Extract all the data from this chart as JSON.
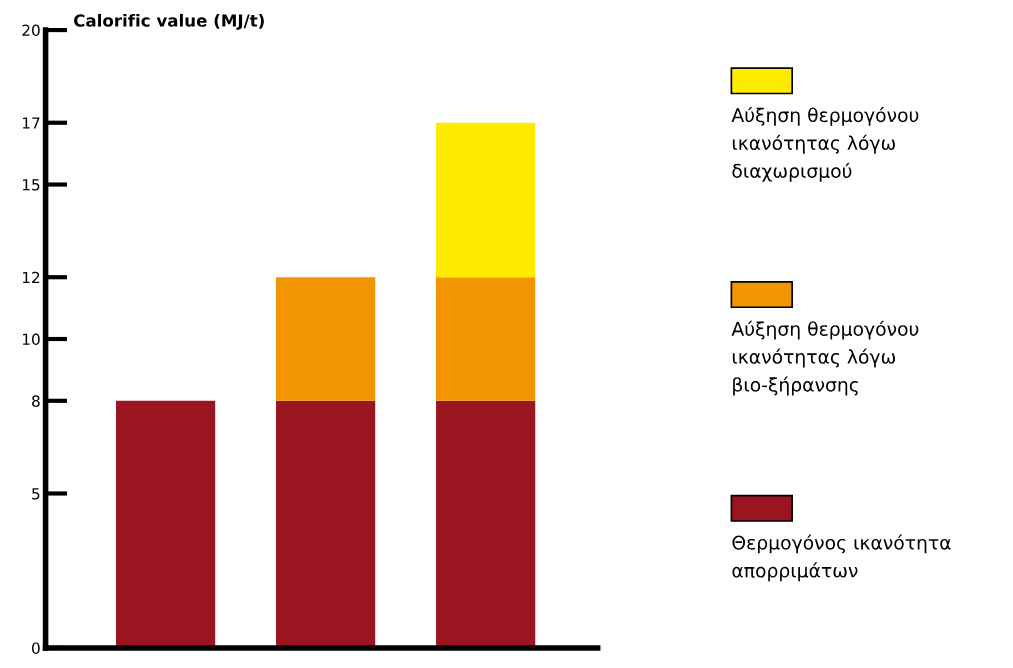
{
  "chart_data": {
    "type": "bar",
    "stacked": true,
    "title": "Calorific value (MJ/t)",
    "categories": [
      null,
      null,
      null
    ],
    "series": [
      {
        "name": "Θερμογόνος ικανότητα απορριμάτων",
        "color": "#9b1520",
        "values": [
          8,
          8,
          8
        ]
      },
      {
        "name": "Αύξηση θερμογόνου ικανότητας λόγω βιο-ξήρανσης",
        "color": "#f29500",
        "values": [
          null,
          4,
          4
        ]
      },
      {
        "name": "Αύξηση θερμογόνου ικανότητας λόγω διαχωρισμού",
        "color": "#ffeb00",
        "values": [
          null,
          null,
          5
        ]
      }
    ],
    "ylim": [
      0,
      20
    ],
    "yticks": [
      0,
      5,
      8,
      10,
      12,
      15,
      17,
      20
    ],
    "grid": false,
    "legend": "right"
  }
}
